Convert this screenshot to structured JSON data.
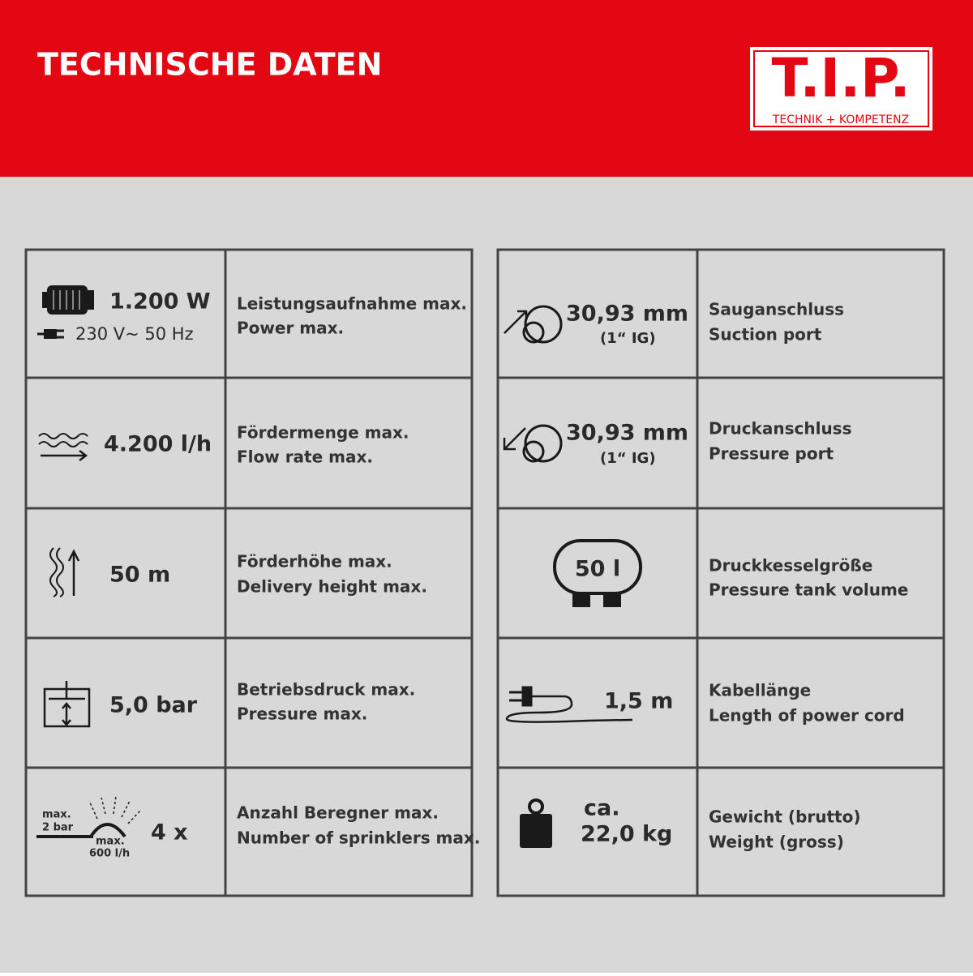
{
  "header": {
    "title": "TECHNISCHE DATEN",
    "logo": {
      "name": "T.I.P.",
      "tagline": "TECHNIK + KOMPETENZ"
    }
  },
  "tables": [
    {
      "rows": [
        {
          "lines": [
            "1.200 W",
            "230 V~   50 Hz"
          ],
          "labels": [
            "Leistungsaufnahme max.",
            "Power max."
          ]
        },
        {
          "lines": [
            "4.200 l/h"
          ],
          "labels": [
            "Fördermenge max.",
            "Flow rate max."
          ]
        },
        {
          "lines": [
            "50 m"
          ],
          "labels": [
            "Förderhöhe max.",
            "Delivery height max."
          ]
        },
        {
          "lines": [
            "5,0 bar"
          ],
          "labels": [
            "Betriebsdruck max.",
            "Pressure max."
          ]
        },
        {
          "lines": [
            "4 x"
          ],
          "icon_text": [
            "max.",
            "2 bar",
            "max.",
            "600 l/h"
          ],
          "labels": [
            "Anzahl Beregner max.",
            "Number of sprinklers max."
          ]
        }
      ]
    },
    {
      "rows": [
        {
          "lines": [
            "30,93 mm",
            "(1“ IG)"
          ],
          "labels": [
            "Sauganschluss",
            "Suction port"
          ]
        },
        {
          "lines": [
            "30,93 mm",
            "(1“ IG)"
          ],
          "labels": [
            "Druckanschluss",
            "Pressure port"
          ]
        },
        {
          "lines": [
            "50 l"
          ],
          "labels": [
            "Druckkesselgröße",
            "Pressure tank volume"
          ]
        },
        {
          "lines": [
            "1,5 m"
          ],
          "labels": [
            "Kabellänge",
            "Length of power cord"
          ]
        },
        {
          "lines": [
            "ca.",
            "22,0 kg"
          ],
          "labels": [
            "Gewicht (brutto)",
            "Weight (gross)"
          ]
        }
      ]
    }
  ]
}
